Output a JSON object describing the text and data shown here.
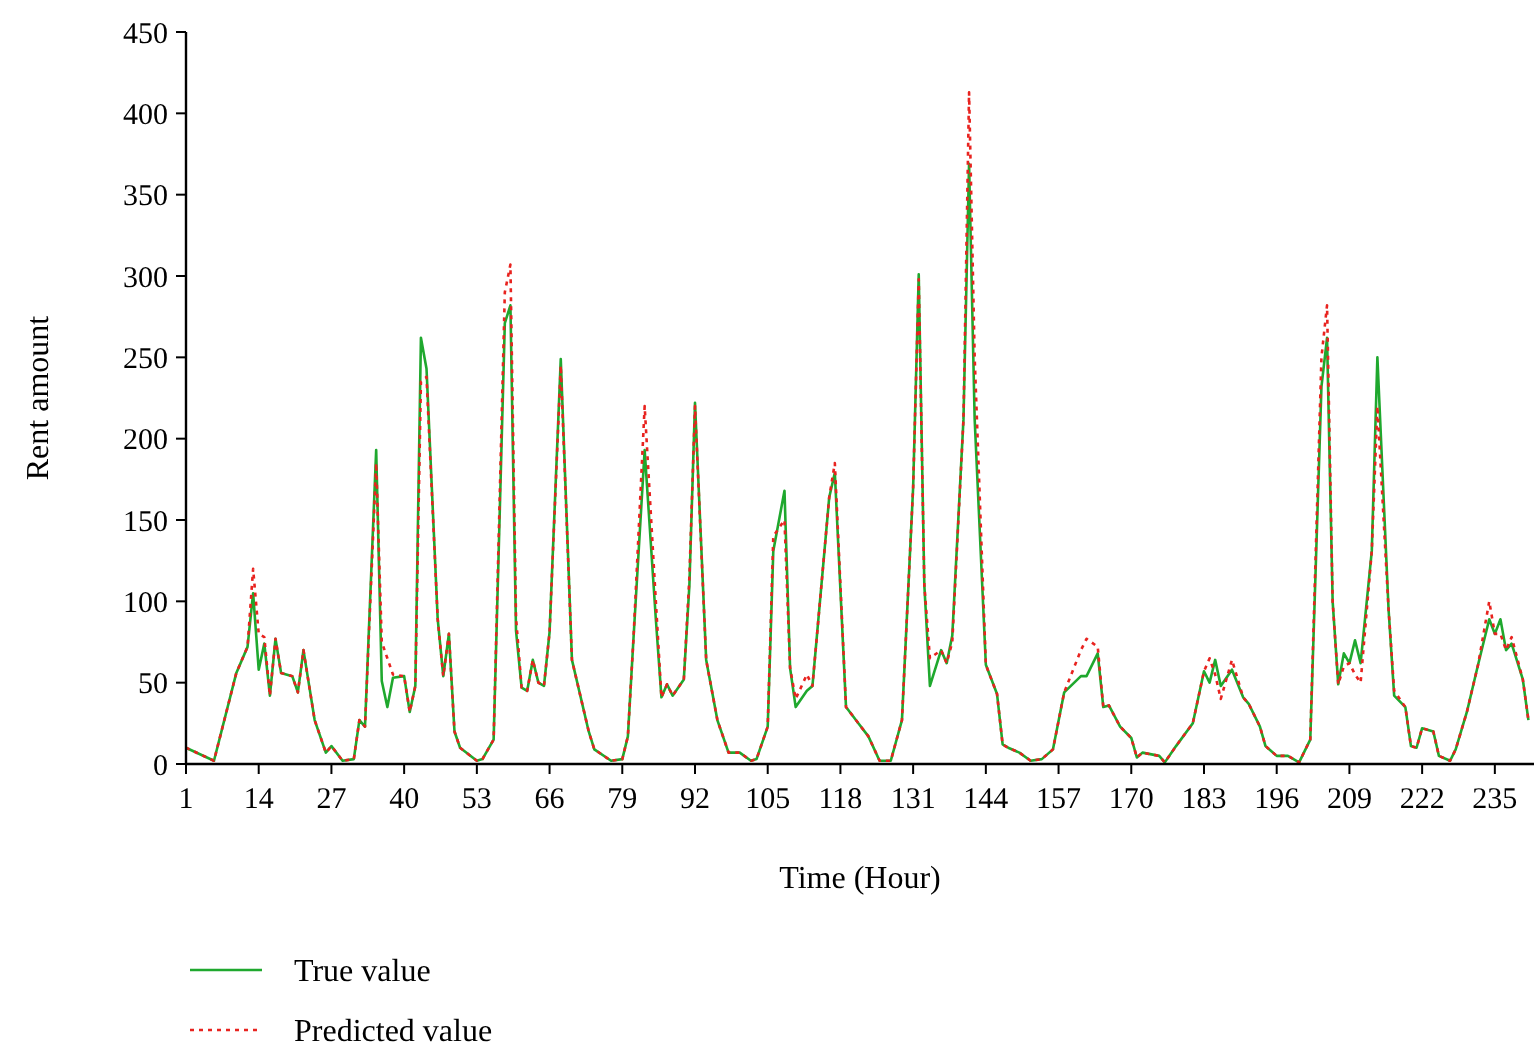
{
  "chart_data": {
    "type": "line",
    "xlabel": "Time (Hour)",
    "ylabel": "Rent amount",
    "x": [
      1,
      6,
      10,
      12,
      13,
      14,
      15,
      16,
      17,
      18,
      20,
      21,
      22,
      24,
      26,
      27,
      29,
      31,
      32,
      33,
      35,
      36,
      37,
      38,
      40,
      41,
      42,
      43,
      44,
      46,
      47,
      48,
      49,
      50,
      53,
      54,
      56,
      58,
      59,
      60,
      61,
      62,
      63,
      64,
      65,
      66,
      68,
      70,
      73,
      74,
      77,
      79,
      80,
      81,
      83,
      85,
      86,
      87,
      88,
      90,
      91,
      92,
      94,
      96,
      98,
      100,
      102,
      103,
      105,
      106,
      108,
      109,
      110,
      112,
      113,
      116,
      117,
      119,
      121,
      123,
      125,
      127,
      129,
      131,
      132,
      133,
      134,
      136,
      137,
      138,
      140,
      141,
      142,
      144,
      146,
      147,
      148,
      150,
      152,
      154,
      156,
      158,
      161,
      162,
      164,
      165,
      166,
      168,
      170,
      171,
      172,
      175,
      176,
      178,
      181,
      183,
      184,
      185,
      186,
      188,
      190,
      191,
      193,
      194,
      196,
      198,
      200,
      202,
      204,
      205,
      206,
      207,
      208,
      209,
      210,
      211,
      213,
      214,
      216,
      217,
      219,
      220,
      221,
      222,
      224,
      225,
      227,
      228,
      230,
      232,
      234,
      235,
      236,
      237,
      238,
      240,
      241
    ],
    "series": [
      {
        "name": "True value",
        "color": "#1fa82e",
        "line_style": "solid",
        "values": [
          10,
          2,
          56,
          72,
          105,
          58,
          74,
          42,
          77,
          56,
          54,
          44,
          70,
          27,
          7,
          11,
          2,
          3,
          27,
          23,
          193,
          51,
          35,
          53,
          54,
          32,
          48,
          262,
          243,
          89,
          54,
          80,
          20,
          10,
          2,
          3,
          15,
          271,
          282,
          82,
          47,
          45,
          64,
          50,
          48,
          81,
          249,
          64,
          20,
          9,
          2,
          3,
          17,
          77,
          193,
          89,
          41,
          49,
          42,
          52,
          110,
          222,
          64,
          27,
          7,
          7,
          2,
          3,
          23,
          131,
          168,
          59,
          35,
          45,
          48,
          164,
          179,
          35,
          26,
          17,
          2,
          2,
          27,
          170,
          301,
          110,
          48,
          70,
          62,
          79,
          212,
          369,
          212,
          61,
          43,
          12,
          10,
          7,
          2,
          3,
          9,
          44,
          54,
          54,
          68,
          35,
          36,
          23,
          16,
          4,
          7,
          5,
          1,
          11,
          25,
          57,
          50,
          64,
          48,
          58,
          41,
          37,
          23,
          11,
          5,
          5,
          1,
          15,
          232,
          262,
          100,
          49,
          68,
          62,
          76,
          62,
          131,
          250,
          95,
          42,
          35,
          11,
          10,
          22,
          20,
          5,
          2,
          9,
          32,
          61,
          89,
          80,
          89,
          70,
          74,
          52,
          27
        ]
      },
      {
        "name": "Predicted value",
        "color": "#e8231f",
        "line_style": "dotted",
        "values": [
          10,
          2,
          56,
          72,
          120,
          80,
          78,
          42,
          77,
          56,
          54,
          44,
          70,
          27,
          7,
          11,
          2,
          3,
          27,
          23,
          185,
          75,
          65,
          55,
          54,
          32,
          48,
          235,
          238,
          89,
          54,
          80,
          20,
          10,
          2,
          3,
          15,
          290,
          307,
          90,
          47,
          45,
          64,
          50,
          48,
          81,
          245,
          64,
          20,
          9,
          2,
          3,
          17,
          77,
          220,
          100,
          41,
          49,
          42,
          52,
          115,
          220,
          64,
          27,
          7,
          7,
          2,
          3,
          23,
          140,
          150,
          59,
          40,
          55,
          48,
          164,
          185,
          35,
          26,
          17,
          2,
          2,
          27,
          170,
          298,
          110,
          65,
          70,
          62,
          75,
          212,
          413,
          250,
          61,
          43,
          12,
          10,
          7,
          2,
          3,
          9,
          44,
          70,
          77,
          72,
          35,
          36,
          23,
          16,
          4,
          7,
          5,
          1,
          11,
          25,
          57,
          65,
          55,
          40,
          64,
          41,
          37,
          23,
          11,
          5,
          5,
          1,
          15,
          250,
          282,
          100,
          49,
          60,
          62,
          55,
          50,
          131,
          220,
          95,
          45,
          35,
          11,
          10,
          22,
          20,
          5,
          2,
          9,
          32,
          61,
          100,
          80,
          80,
          70,
          78,
          52,
          27
        ]
      }
    ],
    "xlim": [
      1,
      242
    ],
    "xticks": [
      1,
      14,
      27,
      40,
      53,
      66,
      79,
      92,
      105,
      118,
      131,
      144,
      157,
      170,
      183,
      196,
      209,
      222,
      235
    ],
    "ylim": [
      0,
      450
    ],
    "yticks": [
      0,
      50,
      100,
      150,
      200,
      250,
      300,
      350,
      400,
      450
    ],
    "grid": false,
    "legend": "bottom"
  }
}
